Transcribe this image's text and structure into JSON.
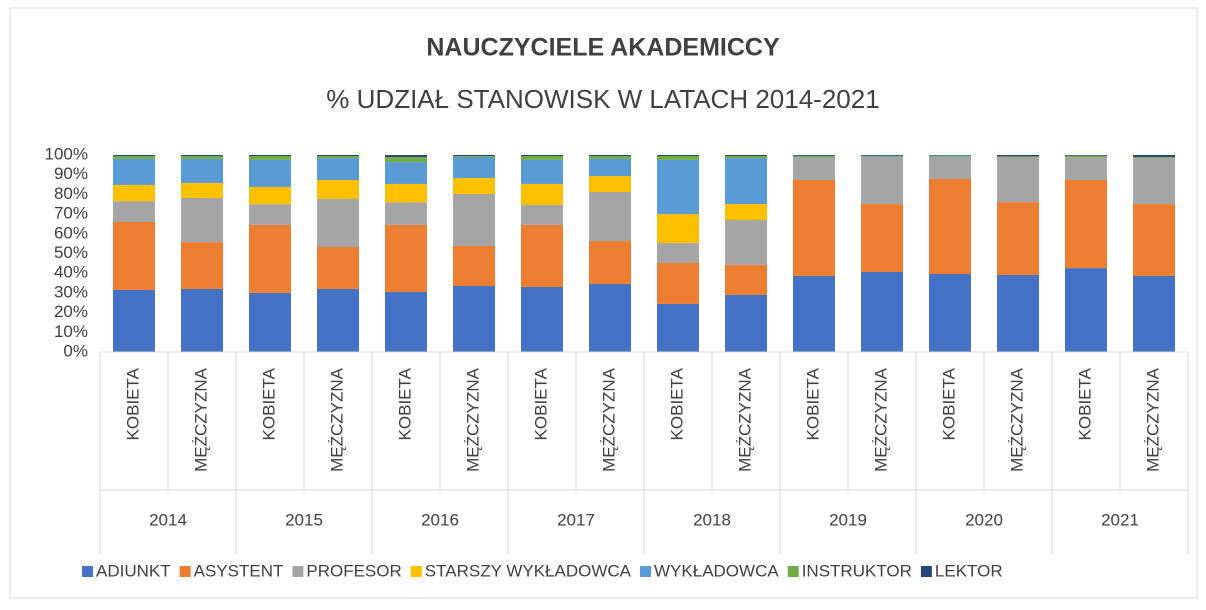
{
  "chart_data": {
    "type": "stacked_bar",
    "title": "NAUCZYCIELE AKADEMICCY",
    "subtitle": "% UDZIAŁ STANOWISK W LATACH 2014-2021",
    "categories": [
      "KOBIETA",
      "MĘŻCZYZNA",
      "KOBIETA",
      "MĘŻCZYZNA",
      "KOBIETA",
      "MĘŻCZYZNA",
      "KOBIETA",
      "MĘŻCZYZNA",
      "KOBIETA",
      "MĘŻCZYZNA",
      "KOBIETA",
      "MĘŻCZYZNA",
      "KOBIETA",
      "MĘŻCZYZNA",
      "KOBIETA",
      "MĘŻCZYZNA"
    ],
    "category_groups": [
      "2014",
      "2015",
      "2016",
      "2017",
      "2018",
      "2019",
      "2020",
      "2021"
    ],
    "ylim": [
      0,
      100
    ],
    "yticks": [
      {
        "value": 0,
        "label": "0%"
      },
      {
        "value": 10,
        "label": "10%"
      },
      {
        "value": 20,
        "label": "20%"
      },
      {
        "value": 30,
        "label": "30%"
      },
      {
        "value": 40,
        "label": "40%"
      },
      {
        "value": 50,
        "label": "50%"
      },
      {
        "value": 60,
        "label": "60%"
      },
      {
        "value": 70,
        "label": "70%"
      },
      {
        "value": 80,
        "label": "80%"
      },
      {
        "value": 90,
        "label": "90%"
      },
      {
        "value": 100,
        "label": "100%"
      }
    ],
    "legend": "bottom",
    "series": [
      {
        "name": "ADIUNKT",
        "color": "#4472c4",
        "values": [
          31.5,
          32,
          30,
          32,
          30.5,
          33.5,
          33,
          34.5,
          24.4,
          29,
          38.6,
          40.6,
          39.6,
          39.1,
          42.6,
          38.6
        ]
      },
      {
        "name": "ASYSTENT",
        "color": "#ed7d31",
        "values": [
          34.5,
          23.8,
          34.5,
          21.3,
          34,
          20.3,
          31.5,
          21.8,
          20.8,
          15.2,
          48.7,
          34.5,
          48.2,
          37,
          44.7,
          36.5
        ]
      },
      {
        "name": "PROFESOR",
        "color": "#a5a5a5",
        "values": [
          10.6,
          22.4,
          10.5,
          24.4,
          11.5,
          26.4,
          10.1,
          24.9,
          10.1,
          22.8,
          11.2,
          23.9,
          11.2,
          22.9,
          11.7,
          23.4
        ]
      },
      {
        "name": "STARSZY WYKŁADOWCA",
        "color": "#ffc000",
        "values": [
          8.2,
          7.6,
          8.8,
          9.6,
          9.3,
          8.1,
          10.7,
          8.1,
          14.7,
          8.1,
          0,
          0,
          0,
          0,
          0,
          0
        ]
      },
      {
        "name": "WYKŁADOWCA",
        "color": "#5b9bd5",
        "values": [
          13.2,
          12.2,
          13.7,
          11.2,
          11.1,
          10.7,
          12.2,
          8.7,
          27.5,
          23.4,
          0.3,
          0.3,
          0.3,
          0,
          0,
          0
        ]
      },
      {
        "name": "INSTRUKTOR",
        "color": "#70ad47",
        "values": [
          1.5,
          1.5,
          2,
          1,
          2.6,
          0.5,
          2,
          1.5,
          2,
          1,
          0.8,
          0.3,
          0.5,
          0.3,
          0.7,
          0.5
        ]
      },
      {
        "name": "LEKTOR",
        "color": "#264478",
        "values": [
          0.5,
          0.5,
          0.5,
          0.5,
          1,
          0.5,
          0.5,
          0.5,
          0.5,
          0.5,
          0.4,
          0.4,
          0.2,
          0.7,
          0.3,
          1
        ]
      }
    ]
  }
}
